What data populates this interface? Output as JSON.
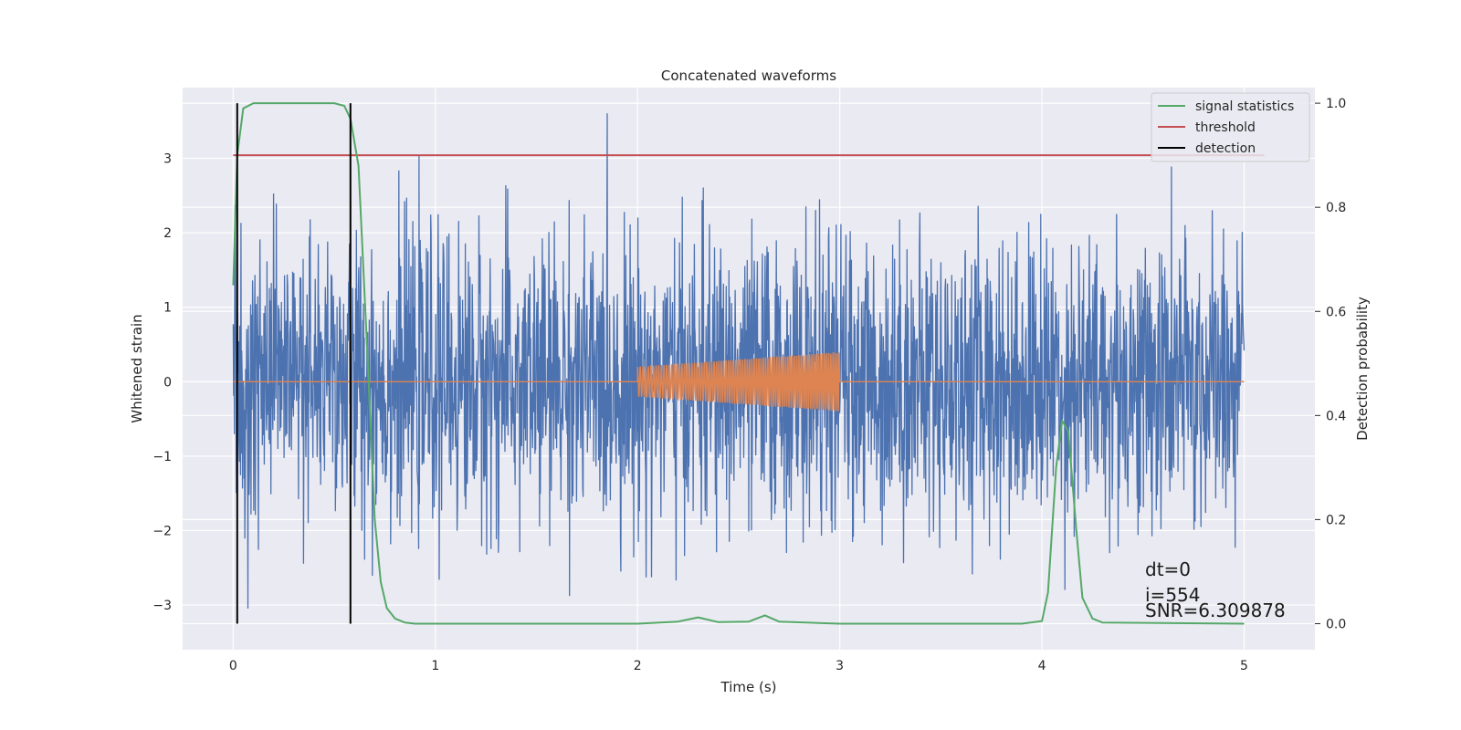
{
  "chart_data": {
    "type": "line",
    "title": "Concatenated waveforms",
    "xlabel": "Time (s)",
    "ylabel": "Whitened strain",
    "ylabel_right": "Detection probability",
    "xlim": [
      -0.25,
      5.35
    ],
    "ylim": [
      -3.6,
      3.95
    ],
    "ylim_right": [
      -0.05,
      1.03
    ],
    "xticks": [
      0,
      1,
      2,
      3,
      4,
      5
    ],
    "xtick_labels": [
      "0",
      "1",
      "2",
      "3",
      "4",
      "5"
    ],
    "yticks": [
      -3,
      -2,
      -1,
      0,
      1,
      2,
      3
    ],
    "ytick_labels": [
      "−3",
      "−2",
      "−1",
      "0",
      "1",
      "2",
      "3"
    ],
    "yticks_right": [
      0.0,
      0.2,
      0.4,
      0.6,
      0.8,
      1.0
    ],
    "ytick_labels_right": [
      "0.0",
      "0.2",
      "0.4",
      "0.6",
      "0.8",
      "1.0"
    ],
    "grid": true,
    "legend_position": "top-right",
    "series": [
      {
        "key": "strain",
        "axis": "left",
        "color": "#4c72b0",
        "description_only": true,
        "x_range": [
          0,
          5
        ],
        "approx_std": 0.95,
        "approx_min": -3.25,
        "approx_max": 3.6
      },
      {
        "key": "template",
        "axis": "left",
        "color": "#dd8452",
        "x_range": [
          2,
          3
        ],
        "amplitude_start": 0.2,
        "amplitude_end": 0.4,
        "baseline": 0
      },
      {
        "name": "signal statistics",
        "axis": "right",
        "color": "#55a868",
        "x": [
          0,
          0.02,
          0.05,
          0.1,
          0.2,
          0.5,
          0.55,
          0.58,
          0.62,
          0.66,
          0.7,
          0.73,
          0.76,
          0.8,
          0.85,
          0.9,
          1.0,
          2.0,
          2.2,
          2.3,
          2.4,
          2.55,
          2.63,
          2.7,
          3.0,
          3.9,
          4.0,
          4.03,
          4.07,
          4.1,
          4.13,
          4.17,
          4.2,
          4.25,
          4.3,
          5.0
        ],
        "y": [
          0.65,
          0.9,
          0.99,
          1.0,
          1.0,
          1.0,
          0.995,
          0.97,
          0.88,
          0.55,
          0.2,
          0.08,
          0.03,
          0.01,
          0.002,
          0.0,
          0.0,
          0.0,
          0.004,
          0.012,
          0.003,
          0.004,
          0.016,
          0.004,
          0.0,
          0.0,
          0.005,
          0.06,
          0.3,
          0.39,
          0.37,
          0.18,
          0.05,
          0.01,
          0.002,
          0.0
        ]
      },
      {
        "name": "threshold",
        "axis": "right",
        "color": "#c44e52",
        "x": [
          0,
          5.1
        ],
        "y": [
          0.9,
          0.9
        ]
      },
      {
        "name": "detection",
        "axis": "right",
        "color": "#000000",
        "x_positions": [
          0.02,
          0.58
        ]
      }
    ],
    "annotations": [
      "dt=0",
      "i=554",
      "SNR=6.309878"
    ]
  }
}
